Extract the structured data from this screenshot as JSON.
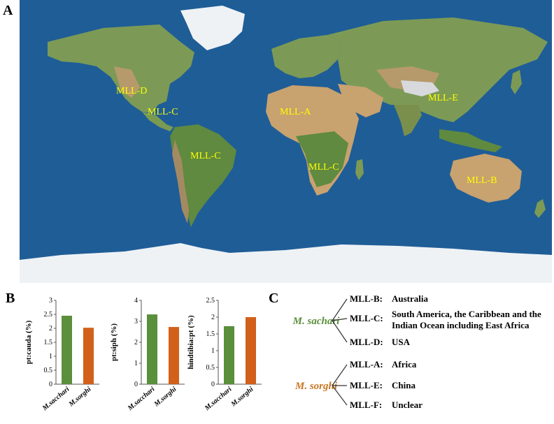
{
  "panels": {
    "a": "A",
    "b": "B",
    "c": "C"
  },
  "map": {
    "labels": [
      {
        "id": "mll-d-na",
        "text": "MLL-D"
      },
      {
        "id": "mll-c-carib",
        "text": "MLL-C"
      },
      {
        "id": "mll-c-sa",
        "text": "MLL-C"
      },
      {
        "id": "mll-a-africa",
        "text": "MLL-A"
      },
      {
        "id": "mll-c-eafrica",
        "text": "MLL-C"
      },
      {
        "id": "mll-e-china",
        "text": "MLL-E"
      },
      {
        "id": "mll-b-aus",
        "text": "MLL-B"
      }
    ],
    "colors": {
      "ocean": "#1f5d97",
      "land": "#7c9a56",
      "desert": "#c8a26f",
      "ice": "#eef2f5",
      "label": "#ffff00"
    }
  },
  "chart_data": [
    {
      "type": "bar",
      "ylabel": "pt:cauda (%)",
      "categories": [
        "M.sacchari",
        "M.sorghi"
      ],
      "values": [
        2.45,
        2.02
      ],
      "ylim": [
        0,
        3
      ],
      "yticks": [
        "0",
        "0.5",
        "1",
        "1.5",
        "2",
        "2.5",
        "3"
      ],
      "colors": [
        "#5a8f3c",
        "#d2601a"
      ]
    },
    {
      "type": "bar",
      "ylabel": "pt:siph (%)",
      "categories": [
        "M.sacchari",
        "M.sorghi"
      ],
      "values": [
        3.33,
        2.73
      ],
      "ylim": [
        0,
        4
      ],
      "yticks": [
        "0",
        "1",
        "2",
        "3",
        "4"
      ],
      "colors": [
        "#5a8f3c",
        "#d2601a"
      ]
    },
    {
      "type": "bar",
      "ylabel": "hindtibia:pt (%)",
      "categories": [
        "M.sacchari",
        "M.sorghi"
      ],
      "values": [
        1.73,
        2.0
      ],
      "ylim": [
        0,
        2.5
      ],
      "yticks": [
        "0",
        "0.5",
        "1",
        "1.5",
        "2",
        "2.5"
      ],
      "colors": [
        "#5a8f3c",
        "#d2601a"
      ]
    }
  ],
  "tree": {
    "groups": [
      {
        "species": "M. sachari",
        "color": "#5a8f3c",
        "items": [
          {
            "code": "MLL-B:",
            "place": [
              "Australia"
            ]
          },
          {
            "code": "MLL-C:",
            "place": [
              "South America, the Caribbean and the",
              "Indian Ocean including East Africa"
            ]
          },
          {
            "code": "MLL-D:",
            "place": [
              "USA"
            ]
          }
        ]
      },
      {
        "species": "M. sorghi",
        "color": "#c8741f",
        "items": [
          {
            "code": "MLL-A:",
            "place": [
              "Africa"
            ]
          },
          {
            "code": "MLL-E:",
            "place": [
              "China"
            ]
          },
          {
            "code": "MLL-F:",
            "place": [
              "Unclear"
            ]
          }
        ]
      }
    ]
  }
}
